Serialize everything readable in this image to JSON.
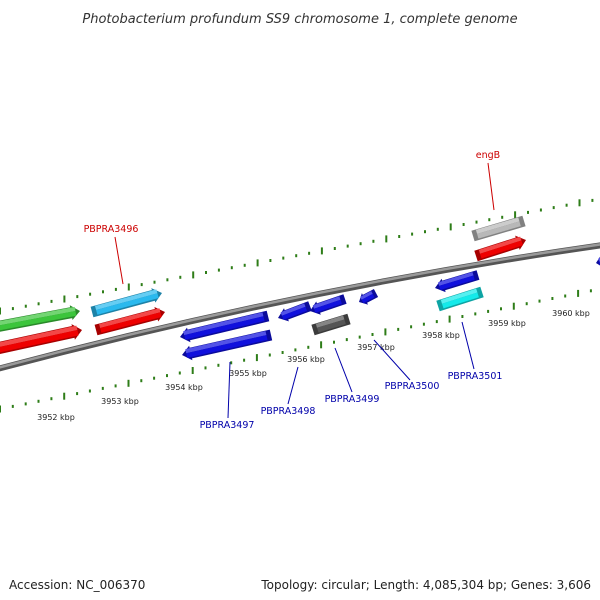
{
  "title": "Photobacterium profundum SS9 chromosome 1, complete genome",
  "colors": {
    "backbone": "#7a7a7a",
    "ruler_tick": "#2e7d18",
    "label_forward": "#cc0000",
    "label_reverse": "#0000aa",
    "gene_red": "#ee0000",
    "gene_green": "#3cc53c",
    "gene_skyblue": "#2ab9ee",
    "gene_blue": "#1010dd",
    "gene_gray": "#555555",
    "gene_silver": "#b8b8b8",
    "gene_cyan": "#14eaea"
  },
  "ruler_labels": [
    "3952 kbp",
    "3953 kbp",
    "3954 kbp",
    "3955 kbp",
    "3956 kbp",
    "3957 kbp",
    "3958 kbp",
    "3959 kbp",
    "3960 kbp"
  ],
  "gene_labels": [
    {
      "text": "engB",
      "color": "label_forward"
    },
    {
      "text": "PBPRA3496",
      "color": "label_forward"
    },
    {
      "text": "PBPRA3497",
      "color": "label_reverse"
    },
    {
      "text": "PBPRA3498",
      "color": "label_reverse"
    },
    {
      "text": "PBPRA3499",
      "color": "label_reverse"
    },
    {
      "text": "PBPRA3500",
      "color": "label_reverse"
    },
    {
      "text": "PBPRA3501",
      "color": "label_reverse"
    }
  ],
  "features": [
    {
      "id": "green-outer",
      "color": "gene_green",
      "strand": "forward",
      "direction": "right"
    },
    {
      "id": "red-inner-1",
      "color": "gene_red",
      "strand": "forward",
      "direction": "right"
    },
    {
      "id": "pbpra3496-outer",
      "color": "gene_skyblue",
      "strand": "forward",
      "direction": "right"
    },
    {
      "id": "pbpra3496-inner",
      "color": "gene_red",
      "strand": "forward",
      "direction": "right"
    },
    {
      "id": "pbpra3497-a",
      "color": "gene_blue",
      "strand": "reverse",
      "direction": "left"
    },
    {
      "id": "pbpra3497-b",
      "color": "gene_blue",
      "strand": "reverse",
      "direction": "left"
    },
    {
      "id": "pbpra3498",
      "color": "gene_blue",
      "strand": "reverse",
      "direction": "left"
    },
    {
      "id": "pbpra3499-a",
      "color": "gene_blue",
      "strand": "reverse",
      "direction": "left"
    },
    {
      "id": "pbpra3499-b",
      "color": "gene_gray",
      "strand": "reverse",
      "direction": "none"
    },
    {
      "id": "pbpra3500",
      "color": "gene_blue",
      "strand": "reverse",
      "direction": "left"
    },
    {
      "id": "pbpra3501-a",
      "color": "gene_blue",
      "strand": "reverse",
      "direction": "left"
    },
    {
      "id": "pbpra3501-b",
      "color": "gene_cyan",
      "strand": "reverse",
      "direction": "none"
    },
    {
      "id": "engb-outer",
      "color": "gene_silver",
      "strand": "forward",
      "direction": "none"
    },
    {
      "id": "engb-inner",
      "color": "gene_red",
      "strand": "forward",
      "direction": "right"
    },
    {
      "id": "edge-feature",
      "color": "gene_blue",
      "strand": "reverse",
      "direction": "left"
    }
  ],
  "footer": {
    "accession": "Accession: NC_006370",
    "summary": "Topology: circular; Length: 4,085,304 bp; Genes: 3,606"
  }
}
